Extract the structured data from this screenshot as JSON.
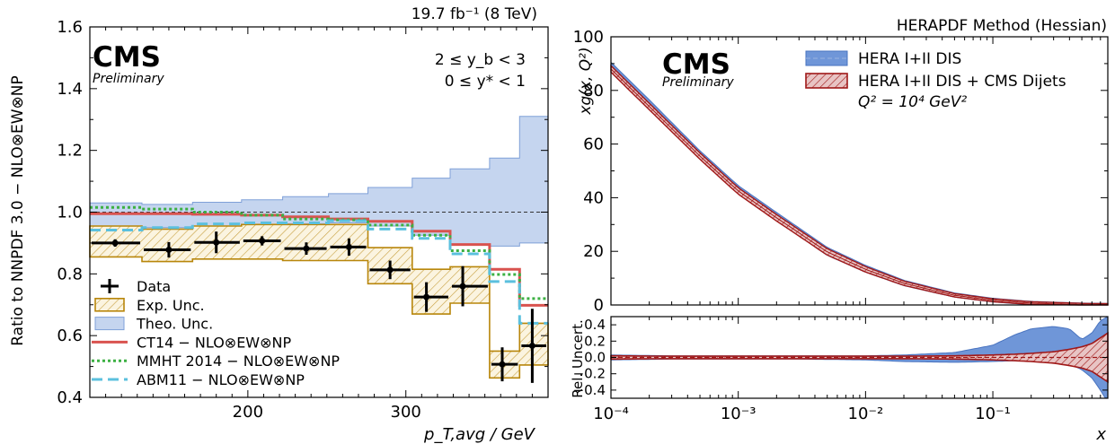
{
  "chart_data": [
    {
      "type": "line",
      "title": "",
      "lumi_label": "19.7 fb⁻¹ (8 TeV)",
      "experiment": "CMS",
      "status": "Preliminary",
      "rapidity_labels": [
        "2 ≤ y_b < 3",
        "0 ≤ y* < 1"
      ],
      "xlabel": "p_T,avg / GeV",
      "ylabel": "Ratio to NNPDF 3.0 − NLO⊗EW⊗NP",
      "xlim": [
        100,
        390
      ],
      "ylim": [
        0.4,
        1.6
      ],
      "xticks": [
        200,
        300
      ],
      "yticks": [
        0.4,
        0.6,
        0.8,
        1.0,
        1.2,
        1.4,
        1.6
      ],
      "reference_line": 1.0,
      "legend_position": "bottom-left",
      "legend": [
        "Data",
        "Exp. Unc.",
        "Theo. Unc.",
        "CT14 − NLO⊗EW⊗NP",
        "MMHT 2014 − NLO⊗EW⊗NP",
        "ABM11 − NLO⊗EW⊗NP"
      ],
      "bin_edges": [
        100,
        133,
        165,
        196,
        222,
        251,
        276,
        304,
        328,
        353,
        372,
        390
      ],
      "data": {
        "x": [
          116,
          150,
          180,
          209,
          237,
          264,
          290,
          313,
          336,
          361,
          380
        ],
        "y": [
          0.9,
          0.878,
          0.902,
          0.907,
          0.882,
          0.887,
          0.813,
          0.725,
          0.76,
          0.507,
          0.567
        ],
        "y_err": [
          0.012,
          0.025,
          0.035,
          0.015,
          0.02,
          0.028,
          0.03,
          0.048,
          0.065,
          0.055,
          0.12
        ]
      },
      "exp_unc": {
        "low": [
          0.855,
          0.84,
          0.848,
          0.848,
          0.843,
          0.843,
          0.768,
          0.67,
          0.705,
          0.463,
          0.505
        ],
        "high": [
          0.955,
          0.945,
          0.955,
          0.96,
          0.96,
          0.96,
          0.885,
          0.815,
          0.823,
          0.55,
          0.64
        ]
      },
      "theo_unc": {
        "low": [
          0.945,
          0.95,
          0.955,
          0.96,
          0.962,
          0.965,
          0.955,
          0.925,
          0.895,
          0.89,
          0.9
        ],
        "high": [
          1.03,
          1.025,
          1.032,
          1.04,
          1.05,
          1.06,
          1.08,
          1.11,
          1.14,
          1.175,
          1.31
        ]
      },
      "series": [
        {
          "name": "CT14 − NLO⊗EW⊗NP",
          "color": "#d9534f",
          "style": "solid",
          "values": [
            0.995,
            0.995,
            0.993,
            0.99,
            0.985,
            0.978,
            0.97,
            0.938,
            0.895,
            0.815,
            0.698
          ]
        },
        {
          "name": "MMHT 2014 − NLO⊗EW⊗NP",
          "color": "#3cb043",
          "style": "dotted",
          "values": [
            1.015,
            1.01,
            1.0,
            0.99,
            0.978,
            0.975,
            0.958,
            0.925,
            0.875,
            0.798,
            0.72
          ]
        },
        {
          "name": "ABM11 − NLO⊗EW⊗NP",
          "color": "#5bc0de",
          "style": "dashed",
          "values": [
            0.942,
            0.95,
            0.962,
            0.965,
            0.965,
            0.972,
            0.945,
            0.915,
            0.865,
            0.775,
            0.64
          ]
        }
      ]
    },
    {
      "type": "line",
      "title": "HERAPDF Method (Hessian)",
      "experiment": "CMS",
      "status": "Preliminary",
      "xlabel": "x",
      "ylabel": "xg(x, Q²)",
      "xscale": "log",
      "xlim": [
        0.0001,
        0.8
      ],
      "ylim": [
        0,
        100
      ],
      "yticks": [
        0,
        20,
        40,
        60,
        80,
        100
      ],
      "xticks_labels": [
        "10⁻⁴",
        "10⁻³",
        "10⁻²",
        "10⁻¹"
      ],
      "annotation": "Q² = 10⁴ GeV²",
      "legend_position": "top-right",
      "legend": [
        "HERA I+II DIS",
        "HERA I+II DIS + CMS Dijets"
      ],
      "x": [
        0.0001,
        0.0002,
        0.0005,
        0.001,
        0.002,
        0.005,
        0.01,
        0.02,
        0.05,
        0.1,
        0.2,
        0.5,
        0.8
      ],
      "series": [
        {
          "name": "HERA I+II DIS",
          "color": "#6f96d8",
          "values": [
            89,
            75,
            56,
            43,
            33,
            20,
            13.5,
            8.2,
            3.7,
            1.8,
            0.7,
            0.1,
            0.0
          ],
          "band": 1.5
        },
        {
          "name": "HERA I+II DIS + CMS Dijets",
          "color": "#b22222",
          "values": [
            88,
            74,
            55.5,
            42.5,
            32.5,
            19.8,
            13.3,
            8.1,
            3.6,
            1.75,
            0.7,
            0.1,
            0.0
          ],
          "band": 1.2
        }
      ],
      "ratio_panel": {
        "ylabel": "Rel. Uncert.",
        "ylim": [
          -0.5,
          0.5
        ],
        "yticks": [
          -0.4,
          -0.2,
          0.0,
          0.2,
          0.4
        ],
        "x": [
          0.0001,
          0.0003,
          0.001,
          0.003,
          0.01,
          0.02,
          0.05,
          0.1,
          0.15,
          0.2,
          0.3,
          0.4,
          0.5,
          0.6,
          0.7,
          0.8
        ],
        "hera_high": [
          0.03,
          0.02,
          0.02,
          0.02,
          0.02,
          0.03,
          0.06,
          0.15,
          0.28,
          0.35,
          0.38,
          0.35,
          0.22,
          0.3,
          0.45,
          0.5
        ],
        "hera_low": [
          -0.03,
          -0.02,
          -0.02,
          -0.02,
          -0.03,
          -0.05,
          -0.06,
          -0.05,
          -0.04,
          -0.04,
          -0.05,
          -0.08,
          -0.15,
          -0.25,
          -0.4,
          -0.55
        ],
        "cms_high": [
          0.02,
          0.015,
          0.015,
          0.015,
          0.015,
          0.015,
          0.02,
          0.03,
          0.04,
          0.05,
          0.07,
          0.1,
          0.13,
          0.17,
          0.24,
          0.3
        ],
        "cms_low": [
          -0.02,
          -0.015,
          -0.015,
          -0.015,
          -0.015,
          -0.015,
          -0.02,
          -0.03,
          -0.04,
          -0.05,
          -0.07,
          -0.1,
          -0.13,
          -0.17,
          -0.24,
          -0.3
        ]
      }
    }
  ]
}
